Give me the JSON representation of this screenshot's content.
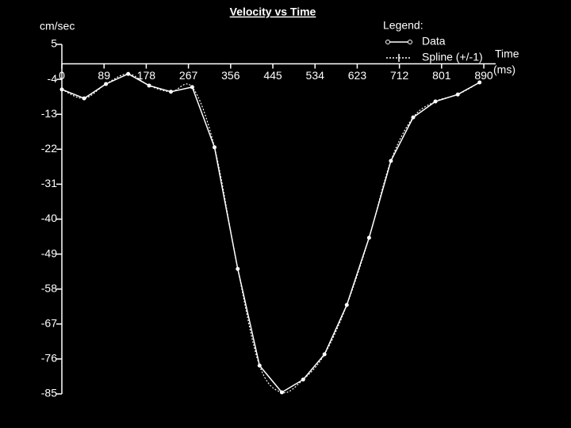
{
  "chart_data": {
    "type": "line",
    "title": "Velocity vs Time",
    "y_label": "cm/sec",
    "x_label": [
      "Time",
      "(ms)"
    ],
    "legend_title": "Legend:",
    "x": [
      0,
      47,
      93,
      140,
      184,
      230,
      275,
      322,
      371,
      417,
      464,
      509,
      554,
      601,
      648,
      694,
      741,
      788,
      835,
      881
    ],
    "series": [
      {
        "name": "Data",
        "color": "#ffffff",
        "values": [
          -6.6,
          -8.9,
          -5.2,
          -2.6,
          -5.6,
          -7.2,
          -6.0,
          -21.5,
          -52.8,
          -77.7,
          -84.6,
          -81.3,
          -74.8,
          -62.1,
          -44.8,
          -25,
          -13.8,
          -9.7,
          -7.9,
          -4.8
        ]
      },
      {
        "name": "Spline (+/-1)",
        "color": "#ffffff",
        "style": "dotted"
      }
    ],
    "xlim": [
      0,
      915
    ],
    "xticks": [
      0,
      89,
      178,
      267,
      356,
      445,
      534,
      623,
      712,
      801,
      890
    ],
    "ylim": [
      -85,
      5
    ],
    "yticks": [
      5,
      -4,
      -13,
      -22,
      -31,
      -40,
      -49,
      -58,
      -67,
      -76,
      -85
    ]
  }
}
